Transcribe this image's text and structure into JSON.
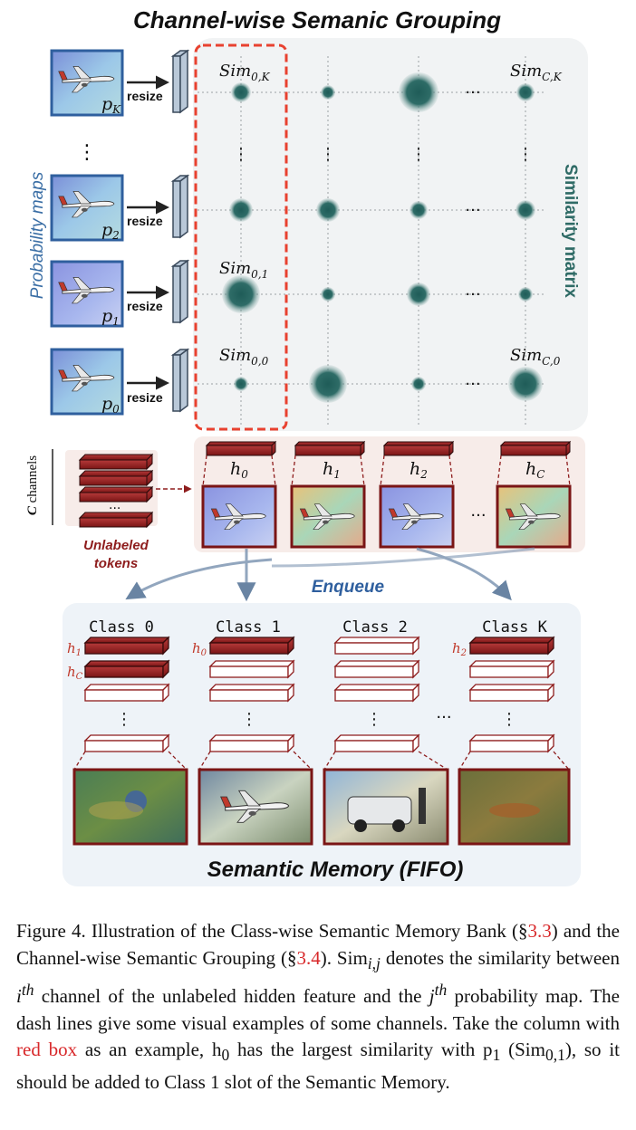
{
  "figure": {
    "title": "Channel-wise Semanic Grouping",
    "prob_maps_label": "Probability maps",
    "similarity_label": "Similarity matrix",
    "resize_label": "resize",
    "prob_maps": [
      "p_K",
      "p_2",
      "p_1",
      "p_0"
    ],
    "sim_labels": {
      "s0K": "Sim_{0,K}",
      "sCK": "Sim_{C,K}",
      "s01": "Sim_{0,1}",
      "s00": "Sim_{0,0}",
      "sC0": "Sim_{C,0}"
    },
    "channels_label": "C channels",
    "unlabeled_label_1": "Unlabeled",
    "unlabeled_label_2": "tokens",
    "hidden": [
      "h_0",
      "h_1",
      "h_2",
      "h_C"
    ],
    "enqueue_label": "Enqueue",
    "classes": [
      "Class 0",
      "Class 1",
      "Class 2",
      "Class K"
    ],
    "class_tags": {
      "c0a": "h_1",
      "c0b": "h_C",
      "c1": "h_0",
      "cK": "h_2"
    },
    "memory_label": "Semantic Memory (FIFO)",
    "ellipsis": "···"
  },
  "caption": {
    "p1_a": "Figure 4.  Illustration of the Class-wise Semantic Memory Bank (§",
    "ref1": "3.3",
    "p1_b": ") and the Channel-wise Semantic Grouping (§",
    "ref2": "3.4",
    "p1_c": ").  Sim",
    "p1_d": " denotes the similarity between ",
    "p1_e": " channel of the unlabeled hidden feature and the ",
    "p1_f": " probability map.  The dash lines give some visual examples of some channels. Take the column with ",
    "red_box": "red box",
    "p1_g": " as an example, h",
    "p1_h": " has the largest similarity with p",
    "p1_i": " (Sim",
    "p1_j": "), so it should be added to Class 1 slot of the Semantic Memory."
  },
  "colors": {
    "teal": "#2f6b66",
    "token_red": "#8e1d1d",
    "dash_red": "#e8412f",
    "panel_grey": "#f1f3f4",
    "panel_pink": "#f7ece9",
    "memory_blue": "#eef3f8",
    "prob_blue": "#3a6ea5",
    "enqueue_blue": "#2f5f9e",
    "caption_red": "#d8282a"
  }
}
